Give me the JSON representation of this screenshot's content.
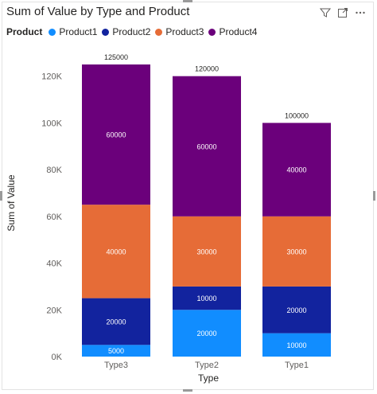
{
  "chart_data": {
    "type": "bar",
    "stacked": true,
    "title": "Sum of Value by Type and Product",
    "xlabel": "Type",
    "ylabel": "Sum of Value",
    "legend_title": "Product",
    "legend_position": "top-left",
    "categories": [
      "Type3",
      "Type2",
      "Type1"
    ],
    "series": [
      {
        "name": "Product1",
        "color": "#118DFF",
        "values": [
          5000,
          20000,
          10000
        ],
        "labels": [
          "5000",
          "20000",
          "10000"
        ]
      },
      {
        "name": "Product2",
        "color": "#12239E",
        "values": [
          20000,
          10000,
          20000
        ],
        "labels": [
          "20000",
          "10000",
          "20000"
        ]
      },
      {
        "name": "Product3",
        "color": "#E66C37",
        "values": [
          40000,
          30000,
          30000
        ],
        "labels": [
          "40000",
          "30000",
          "30000"
        ]
      },
      {
        "name": "Product4",
        "color": "#6B007B",
        "values": [
          60000,
          60000,
          40000
        ],
        "labels": [
          "60000",
          "60000",
          "40000"
        ]
      }
    ],
    "totals": [
      125000,
      120000,
      100000
    ],
    "total_labels": [
      "125000",
      "120000",
      "100000"
    ],
    "ylim": [
      0,
      125000
    ],
    "yticks": [
      0,
      20000,
      40000,
      60000,
      80000,
      100000,
      120000
    ],
    "ytick_labels": [
      "0K",
      "20K",
      "40K",
      "60K",
      "80K",
      "100K",
      "120K"
    ],
    "grid": false
  },
  "icons": {
    "filter": "filter-icon",
    "focus": "focus-mode-icon",
    "more": "more-options-icon"
  }
}
